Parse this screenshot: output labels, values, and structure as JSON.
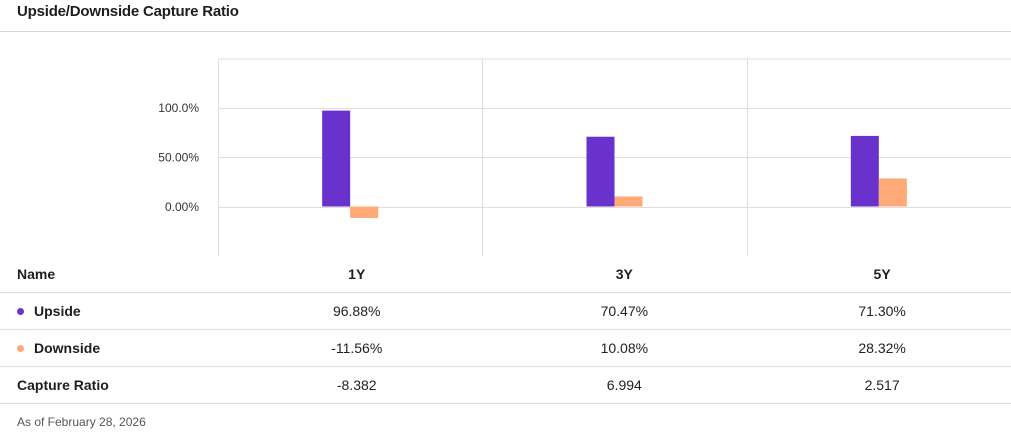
{
  "title": "Upside/Downside Capture Ratio",
  "footnote": "As of February 28, 2026",
  "colors": {
    "upside": "#6a32cc",
    "downside": "#ffa878",
    "grid": "#dedede"
  },
  "table": {
    "header": {
      "name": "Name",
      "periods": [
        "1Y",
        "3Y",
        "5Y"
      ]
    },
    "rows": [
      {
        "name": "Upside",
        "values": [
          "96.88%",
          "70.47%",
          "71.30%"
        ]
      },
      {
        "name": "Downside",
        "values": [
          "-11.56%",
          "10.08%",
          "28.32%"
        ]
      },
      {
        "name": "Capture Ratio",
        "values": [
          "-8.382",
          "6.994",
          "2.517"
        ]
      }
    ]
  },
  "chart_data": {
    "type": "bar",
    "title": "Upside/Downside Capture Ratio",
    "categories": [
      "1Y",
      "3Y",
      "5Y"
    ],
    "series": [
      {
        "name": "Upside",
        "values": [
          96.88,
          70.47,
          71.3
        ]
      },
      {
        "name": "Downside",
        "values": [
          -11.56,
          10.08,
          28.32
        ]
      }
    ],
    "ytick_labels": [
      "100.0%",
      "50.00%",
      "0.00%"
    ],
    "ytick_values": [
      100,
      50,
      0
    ],
    "ylim": [
      -50,
      150
    ],
    "xlabel": "",
    "ylabel": "",
    "grid": true
  }
}
